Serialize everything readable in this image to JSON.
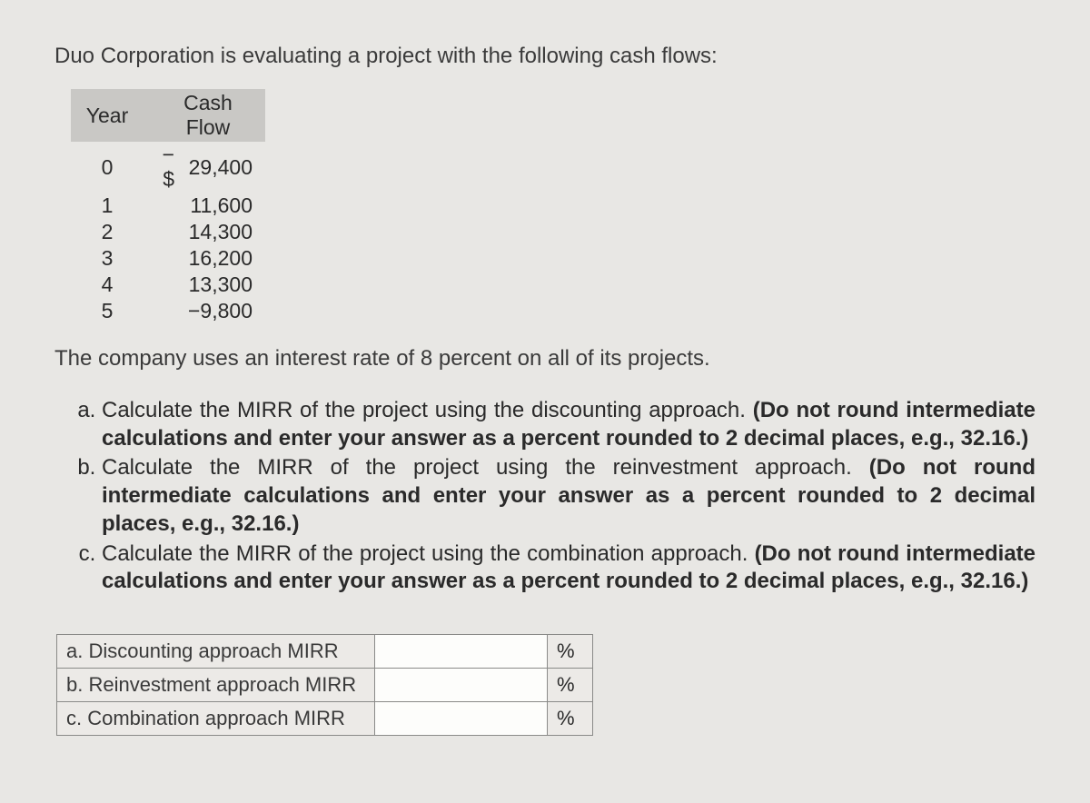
{
  "intro": "Duo Corporation is evaluating a project with the following cash flows:",
  "cashflow_table": {
    "headers": {
      "year": "Year",
      "cashflow": "Cash Flow"
    },
    "rows": [
      {
        "year": "0",
        "sign": "−$",
        "amount": "29,400"
      },
      {
        "year": "1",
        "sign": "",
        "amount": "11,600"
      },
      {
        "year": "2",
        "sign": "",
        "amount": "14,300"
      },
      {
        "year": "3",
        "sign": "",
        "amount": "16,200"
      },
      {
        "year": "4",
        "sign": "",
        "amount": "13,300"
      },
      {
        "year": "5",
        "sign": "",
        "amount": "−9,800"
      }
    ]
  },
  "interest_line": "The company uses an interest rate of 8 percent on all of its projects.",
  "questions": {
    "a_plain": "Calculate the MIRR of the project using the discounting approach. ",
    "a_bold": "(Do not round intermediate calculations and enter your answer as a percent rounded to 2 decimal places, e.g., 32.16.)",
    "b_plain": "Calculate the MIRR of the project using the reinvestment approach. ",
    "b_bold": "(Do not round intermediate calculations and enter your answer as a percent rounded to 2 decimal places, e.g., 32.16.)",
    "c_plain": "Calculate the MIRR of the project using the combination approach. ",
    "c_bold": "(Do not round intermediate calculations and enter your answer as a percent rounded to 2 decimal places, e.g., 32.16.)"
  },
  "answer_table": {
    "rows": [
      {
        "label": "a. Discounting approach MIRR",
        "value": "",
        "unit": "%"
      },
      {
        "label": "b. Reinvestment approach MIRR",
        "value": "",
        "unit": "%"
      },
      {
        "label": "c. Combination approach MIRR",
        "value": "",
        "unit": "%"
      }
    ]
  },
  "style": {
    "background_color": "#e8e7e4",
    "text_color": "#2a2a2a",
    "header_bg": "#c9c8c5",
    "border_color": "#8a8a88",
    "body_fontsize_pt": 18,
    "bold_weight": 700
  }
}
